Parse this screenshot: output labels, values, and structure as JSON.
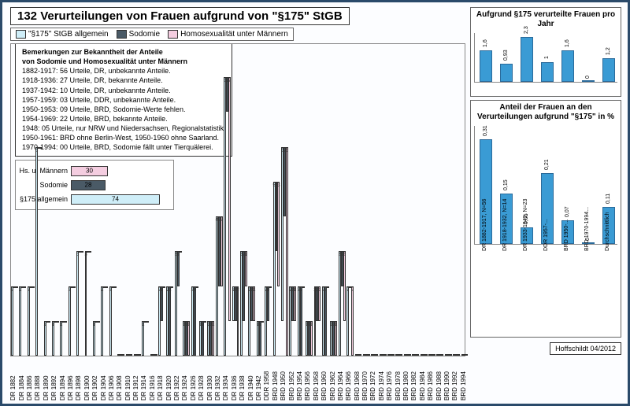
{
  "title": "132 Verurteilungen von Frauen aufgrund von \"§175\" StGB",
  "credit": "Hoffschildt 04/2012",
  "legend": [
    {
      "label": "\"§175\" StGB allgemein",
      "color": "#cfeef8"
    },
    {
      "label": "Sodomie",
      "color": "#4a5a66"
    },
    {
      "label": "Homosexualität unter Männern",
      "color": "#f4cde0"
    }
  ],
  "notes": {
    "header": "Bemerkungen zur Bekanntheit der Anteile\nvon Sodomie und Homosexualität unter Männern",
    "lines": [
      "1882-1917: 56 Urteile, DR, unbekannte Anteile.",
      "1918-1936: 27 Urteile, DR, bekannte Anteile.",
      "1937-1942: 10 Urteile, DR, unbekannte Anteile.",
      "1957-1959: 03 Urteile, DDR, unbekannte Anteile.",
      "1950-1953: 09 Urteile, BRD, Sodomie-Werte fehlen.",
      "1954-1969: 22 Urteile, BRD, bekannte Anteile.",
      "1948: 05 Urteile, nur NRW und Niedersachsen, Regionalstatistik.",
      "1950-1961: BRD ohne Berlin-West, 1950-1960 ohne Saarland.",
      "1970-1994: 00 Urteile, BRD, Sodomie fällt unter Tierquälerei."
    ]
  },
  "inset_totals": {
    "rows": [
      {
        "label": "Hs. u. Männern",
        "value": 30,
        "color": "#f4cde0"
      },
      {
        "label": "Sodomie",
        "value": 28,
        "color": "#4a5a66"
      },
      {
        "label": "§175 allgemein",
        "value": 74,
        "color": "#cfeef8"
      }
    ],
    "max": 80
  },
  "main": {
    "ymax": 9,
    "bar_colors": {
      "allg": "#cfeef8",
      "sod": "#4a5a66",
      "hs": "#f4cde0"
    },
    "years": [
      {
        "l": "DR 1882",
        "a": 2,
        "s": 0,
        "h": 0
      },
      {
        "l": "DR 1884",
        "a": 2,
        "s": 0,
        "h": 0
      },
      {
        "l": "DR 1886",
        "a": 2,
        "s": 0,
        "h": 0
      },
      {
        "l": "DR 1888",
        "a": 6,
        "s": 0,
        "h": 0
      },
      {
        "l": "DR 1890",
        "a": 1,
        "s": 0,
        "h": 0
      },
      {
        "l": "DR 1892",
        "a": 1,
        "s": 0,
        "h": 0
      },
      {
        "l": "DR 1894",
        "a": 1,
        "s": 0,
        "h": 0
      },
      {
        "l": "DR 1896",
        "a": 2,
        "s": 0,
        "h": 0
      },
      {
        "l": "DR 1898",
        "a": 3,
        "s": 0,
        "h": 0
      },
      {
        "l": "DR 1900",
        "a": 3,
        "s": 0,
        "h": 0
      },
      {
        "l": "DR 1902",
        "a": 1,
        "s": 0,
        "h": 0
      },
      {
        "l": "DR 1904",
        "a": 2,
        "s": 0,
        "h": 0
      },
      {
        "l": "DR 1906",
        "a": 2,
        "s": 0,
        "h": 0
      },
      {
        "l": "DR 1908",
        "a": 0,
        "s": 0,
        "h": 0
      },
      {
        "l": "DR 1910",
        "a": 0,
        "s": 0,
        "h": 0
      },
      {
        "l": "DR 1912",
        "a": 0,
        "s": 0,
        "h": 0
      },
      {
        "l": "DR 1914",
        "a": 1,
        "s": 0,
        "h": 0
      },
      {
        "l": "DR 1916",
        "a": 0,
        "s": 0,
        "h": 0
      },
      {
        "l": "DR 1918",
        "a": 2,
        "s": 1,
        "h": 0
      },
      {
        "l": "DR 1920",
        "a": 2,
        "s": 2,
        "h": 0
      },
      {
        "l": "DR 1922",
        "a": 3,
        "s": 1,
        "h": 0
      },
      {
        "l": "DR 1924",
        "a": 1,
        "s": 1,
        "h": 1
      },
      {
        "l": "DR 1926",
        "a": 2,
        "s": 2,
        "h": 0
      },
      {
        "l": "DR 1928",
        "a": 1,
        "s": 1,
        "h": 0
      },
      {
        "l": "DR 1930",
        "a": 1,
        "s": 1,
        "h": 1
      },
      {
        "l": "DR 1932",
        "a": 4,
        "s": 2,
        "h": 2
      },
      {
        "l": "DR 1934",
        "a": 8,
        "s": 1,
        "h": 7
      },
      {
        "l": "DR 1936",
        "a": 1,
        "s": 1,
        "h": 2
      },
      {
        "l": "DR 1938",
        "a": 3,
        "s": 2,
        "h": 1
      },
      {
        "l": "DR 1940",
        "a": 2,
        "s": 1,
        "h": 1
      },
      {
        "l": "DR 1942",
        "a": 1,
        "s": 1,
        "h": 0
      },
      {
        "l": "DDR 1958",
        "a": 2,
        "s": 1,
        "h": 0
      },
      {
        "l": "BRD 1948",
        "a": 5,
        "s": 2,
        "h": 3
      },
      {
        "l": "BRD 1950",
        "a": 5,
        "s": 2,
        "h": 6
      },
      {
        "l": "BRD 1952",
        "a": 2,
        "s": 1,
        "h": 1
      },
      {
        "l": "BRD 1954",
        "a": 2,
        "s": 2,
        "h": 0
      },
      {
        "l": "BRD 1956",
        "a": 1,
        "s": 1,
        "h": 1
      },
      {
        "l": "BRD 1958",
        "a": 2,
        "s": 1,
        "h": 1
      },
      {
        "l": "BRD 1960",
        "a": 2,
        "s": 2,
        "h": 0
      },
      {
        "l": "BRD 1962",
        "a": 1,
        "s": 1,
        "h": 1
      },
      {
        "l": "BRD 1964",
        "a": 3,
        "s": 1,
        "h": 2
      },
      {
        "l": "BRD 1966",
        "a": 2,
        "s": 0,
        "h": 2
      },
      {
        "l": "BRD 1968",
        "a": 0,
        "s": 0,
        "h": 0
      },
      {
        "l": "BRD 1970",
        "a": 0,
        "s": 0,
        "h": 0
      },
      {
        "l": "BRD 1972",
        "a": 0,
        "s": 0,
        "h": 0
      },
      {
        "l": "BRD 1974",
        "a": 0,
        "s": 0,
        "h": 0
      },
      {
        "l": "BRD 1976",
        "a": 0,
        "s": 0,
        "h": 0
      },
      {
        "l": "BRD 1978",
        "a": 0,
        "s": 0,
        "h": 0
      },
      {
        "l": "BRD 1980",
        "a": 0,
        "s": 0,
        "h": 0
      },
      {
        "l": "BRD 1982",
        "a": 0,
        "s": 0,
        "h": 0
      },
      {
        "l": "BRD 1984",
        "a": 0,
        "s": 0,
        "h": 0
      },
      {
        "l": "BRD 1986",
        "a": 0,
        "s": 0,
        "h": 0
      },
      {
        "l": "BRD 1988",
        "a": 0,
        "s": 0,
        "h": 0
      },
      {
        "l": "BRD 1990",
        "a": 0,
        "s": 0,
        "h": 0
      },
      {
        "l": "BRD 1992",
        "a": 0,
        "s": 0,
        "h": 0
      },
      {
        "l": "BRD 1994",
        "a": 0,
        "s": 0,
        "h": 0
      }
    ]
  },
  "side1": {
    "title": "Aufgrund §175 verurteilte Frauen pro Jahr",
    "ymax": 2.5,
    "bar_color": "#3a9bd4",
    "items": [
      {
        "label": "",
        "value": 1.6
      },
      {
        "label": "",
        "value": 0.93
      },
      {
        "label": "",
        "value": 2.3
      },
      {
        "label": "",
        "value": 1.0
      },
      {
        "label": "",
        "value": 1.6
      },
      {
        "label": "",
        "value": 0.0
      },
      {
        "label": "",
        "value": 1.2
      }
    ]
  },
  "side2": {
    "title": "Anteil der Frauen an den Verurteilungen aufgrund \"§175\" in %",
    "ymax": 0.35,
    "bar_color": "#3a9bd4",
    "items": [
      {
        "label": "DR 1882-1917, N=56",
        "value": 0.31
      },
      {
        "label": "DR 1918-1932, N=14",
        "value": 0.15
      },
      {
        "label": "DR 1933-1942, N=23",
        "value": 0.05
      },
      {
        "label": "DDR 1957-...",
        "value": 0.21
      },
      {
        "label": "BRD 1950-...",
        "value": 0.07
      },
      {
        "label": "BRD 1970-1994...",
        "value": 0.0
      },
      {
        "label": "Durchschnittlich",
        "value": 0.11
      }
    ]
  }
}
